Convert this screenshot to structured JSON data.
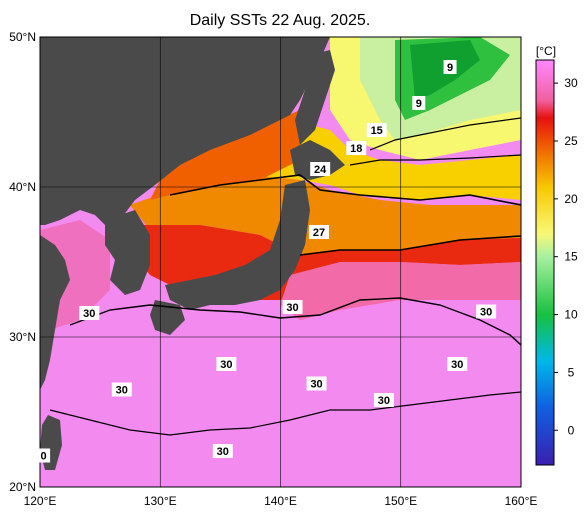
{
  "title": "Daily SSTs 22 Aug. 2025.",
  "map": {
    "lon_range": [
      120,
      160
    ],
    "lat_range": [
      20,
      50
    ],
    "lon_ticks": [
      {
        "value": 120,
        "label": "120°E"
      },
      {
        "value": 130,
        "label": "130°E"
      },
      {
        "value": 140,
        "label": "140°E"
      },
      {
        "value": 150,
        "label": "150°E"
      },
      {
        "value": 160,
        "label": "160°E"
      }
    ],
    "lat_ticks": [
      {
        "value": 50,
        "label": "50°N"
      },
      {
        "value": 40,
        "label": "40°N"
      },
      {
        "value": 30,
        "label": "30°N"
      },
      {
        "value": 20,
        "label": "20°N"
      }
    ],
    "grid": true,
    "land_color": "#4a4a4a"
  },
  "colorbar": {
    "unit": "[°C]",
    "min": -3,
    "max": 32,
    "ticks": [
      30,
      25,
      20,
      15,
      10,
      5,
      0
    ],
    "stops": [
      {
        "value": -3,
        "color": "#3a1fb0"
      },
      {
        "value": 2,
        "color": "#1060e0"
      },
      {
        "value": 6,
        "color": "#00b8e8"
      },
      {
        "value": 10,
        "color": "#18c040"
      },
      {
        "value": 15,
        "color": "#a8f0a0"
      },
      {
        "value": 17,
        "color": "#f8f878"
      },
      {
        "value": 21,
        "color": "#f8c800"
      },
      {
        "value": 24,
        "color": "#f07000"
      },
      {
        "value": 27,
        "color": "#e81010"
      },
      {
        "value": 28.5,
        "color": "#f060a0"
      },
      {
        "value": 32,
        "color": "#ff88ff"
      }
    ]
  },
  "isotherm_labels": [
    {
      "text": "9",
      "lon": 154.1,
      "lat": 48.0
    },
    {
      "text": "9",
      "lon": 151.5,
      "lat": 45.6
    },
    {
      "text": "15",
      "lon": 148.0,
      "lat": 43.8
    },
    {
      "text": "18",
      "lon": 146.3,
      "lat": 42.6
    },
    {
      "text": "24",
      "lon": 143.3,
      "lat": 41.2
    },
    {
      "text": "27",
      "lon": 143.2,
      "lat": 37.0
    },
    {
      "text": "30",
      "lon": 124.1,
      "lat": 31.6
    },
    {
      "text": "30",
      "lon": 135.5,
      "lat": 28.2
    },
    {
      "text": "30",
      "lon": 141.0,
      "lat": 32.0
    },
    {
      "text": "30",
      "lon": 157.1,
      "lat": 31.7
    },
    {
      "text": "30",
      "lon": 154.7,
      "lat": 28.2
    },
    {
      "text": "30",
      "lon": 126.8,
      "lat": 26.5
    },
    {
      "text": "30",
      "lon": 143.0,
      "lat": 26.9
    },
    {
      "text": "30",
      "lon": 148.6,
      "lat": 25.8
    },
    {
      "text": "30",
      "lon": 135.2,
      "lat": 22.4
    },
    {
      "text": "0",
      "lon": 120.3,
      "lat": 22.1
    }
  ]
}
